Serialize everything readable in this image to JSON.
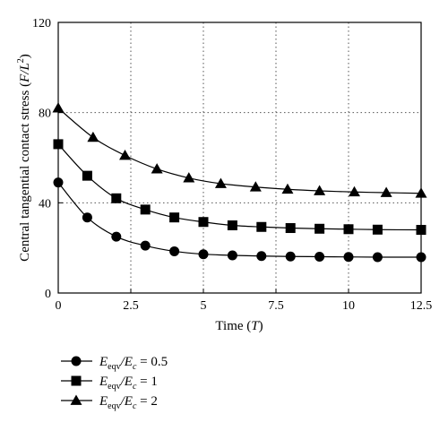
{
  "chart_data": {
    "type": "line",
    "xlabel": "Time (T)",
    "ylabel": "Central tangential contact stress (F/L2)",
    "xlim": [
      0,
      12.5
    ],
    "ylim": [
      0,
      120
    ],
    "x_ticks": [
      "0",
      "2.5",
      "5",
      "7.5",
      "10",
      "12.5"
    ],
    "y_ticks": [
      "0",
      "40",
      "80",
      "120"
    ],
    "grid": "dotted",
    "legend_position": "bottom-left, below plot",
    "series": [
      {
        "name": "Eeqv/Ec = 0.5",
        "marker": "circle",
        "x": [
          0,
          1,
          2,
          3,
          4,
          5,
          6,
          7,
          8,
          9,
          10,
          11,
          12.5
        ],
        "y": [
          49,
          33.5,
          25,
          21,
          18.5,
          17.2,
          16.7,
          16.4,
          16.2,
          16.1,
          16.0,
          15.9,
          15.9
        ]
      },
      {
        "name": "Eeqv/Ec = 1",
        "marker": "square",
        "x": [
          0,
          1,
          2,
          3,
          4,
          5,
          6,
          7,
          8,
          9,
          10,
          11,
          12.5
        ],
        "y": [
          66,
          52,
          42,
          37,
          33.5,
          31.5,
          30,
          29.3,
          28.8,
          28.5,
          28.3,
          28.1,
          28.0
        ]
      },
      {
        "name": "Eeqv/Ec = 2",
        "marker": "triangle",
        "x": [
          0,
          1.2,
          2.3,
          3.4,
          4.5,
          5.6,
          6.8,
          7.9,
          9.0,
          10.2,
          11.3,
          12.5
        ],
        "y": [
          82,
          69,
          61,
          55,
          51,
          48.5,
          47,
          46,
          45.3,
          44.8,
          44.5,
          44.2
        ]
      }
    ]
  },
  "labels": {
    "xlabel_text": "Time (",
    "xlabel_unit": "T",
    "xlabel_close": ")",
    "ylabel_text": "Central tangential contact stress (",
    "ylabel_unit": "F/L",
    "ylabel_exp": "2",
    "ylabel_close": ")",
    "legend": [
      {
        "lhs": "E",
        "sub1": "eqv",
        "slash": "/E",
        "sub2": "c",
        "rhs": " = 0.5"
      },
      {
        "lhs": "E",
        "sub1": "eqv",
        "slash": "/E",
        "sub2": "c",
        "rhs": " = 1"
      },
      {
        "lhs": "E",
        "sub1": "eqv",
        "slash": "/E",
        "sub2": "c",
        "rhs": " = 2"
      }
    ]
  }
}
